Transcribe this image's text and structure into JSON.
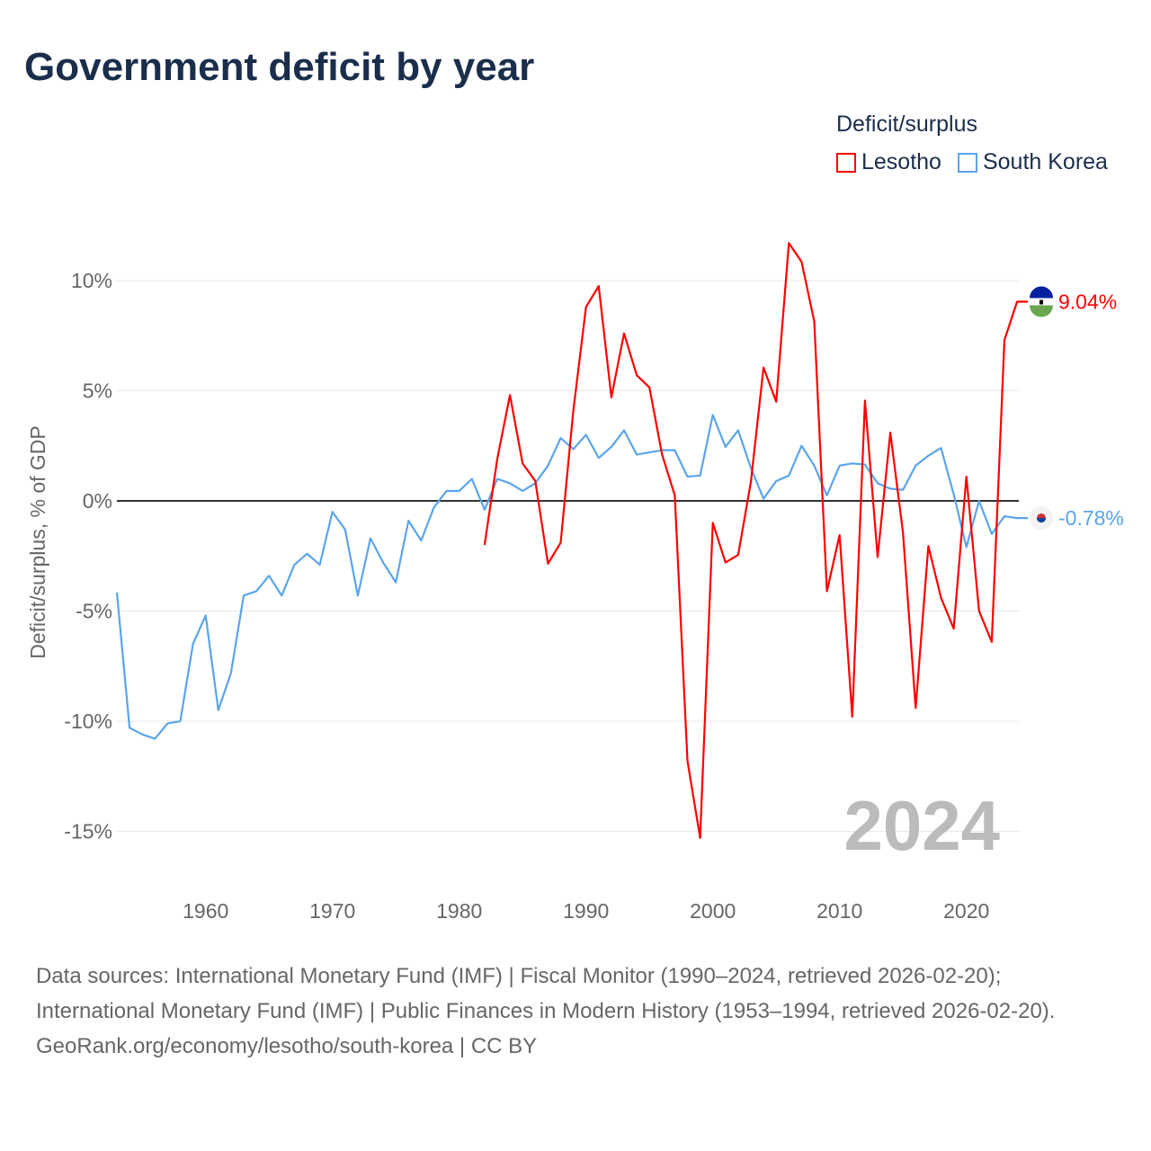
{
  "title": "Government deficit by year",
  "legend": {
    "title": "Deficit/surplus",
    "items": [
      {
        "label": "Lesotho",
        "color": "#ff0000"
      },
      {
        "label": "South Korea",
        "color": "#5aa5eb"
      }
    ]
  },
  "year_label": "2024",
  "footer": {
    "sources": "Data sources: International Monetary Fund (IMF) | Fiscal Monitor (1990–2024, retrieved 2026-02-20); International Monetary Fund (IMF) | Public Finances in Modern History (1953–1994, retrieved 2026-02-20).",
    "link": "GeoRank.org/economy/lesotho/south-korea | CC BY"
  },
  "chart_data": {
    "type": "line",
    "title": "Government deficit by year",
    "xlabel": "",
    "ylabel": "Deficit/surplus, % of GDP",
    "xlim": [
      1953,
      2024
    ],
    "ylim": [
      -17,
      12
    ],
    "x_ticks": [
      1960,
      1970,
      1980,
      1990,
      2000,
      2010,
      2020
    ],
    "y_ticks": [
      {
        "v": 10,
        "label": "10%"
      },
      {
        "v": 5,
        "label": "5%"
      },
      {
        "v": 0,
        "label": "0%"
      },
      {
        "v": -5,
        "label": "-5%"
      },
      {
        "v": -10,
        "label": "-10%"
      },
      {
        "v": -15,
        "label": "-15%"
      }
    ],
    "grid": true,
    "legend_position": "top-right",
    "series": [
      {
        "name": "Lesotho",
        "color": "#ff0000",
        "start": 1982,
        "end_label": "9.04%",
        "values": [
          -2.0,
          1.9,
          4.8,
          1.7,
          0.9,
          -2.85,
          -1.9,
          4.1,
          8.8,
          9.75,
          4.7,
          7.6,
          5.7,
          5.15,
          2.1,
          0.25,
          -11.8,
          -15.3,
          -1.0,
          -2.8,
          -2.45,
          0.85,
          6.05,
          4.5,
          11.7,
          10.85,
          8.15,
          -4.1,
          -1.55,
          -9.8,
          4.55,
          -2.55,
          3.1,
          -1.45,
          -9.4,
          -2.05,
          -4.4,
          -5.8,
          1.1,
          -5.0,
          -6.4,
          7.3,
          9.04
        ]
      },
      {
        "name": "South Korea",
        "color": "#5aa5eb",
        "start": 1953,
        "end_label": "-0.78%",
        "values": [
          -4.16,
          -10.3,
          -10.6,
          -10.8,
          -10.1,
          -10.0,
          -6.5,
          -5.2,
          -9.5,
          -7.8,
          -4.3,
          -4.1,
          -3.4,
          -4.3,
          -2.9,
          -2.4,
          -2.9,
          -0.5,
          -1.3,
          -4.3,
          -1.7,
          -2.8,
          -3.7,
          -0.9,
          -1.8,
          -0.3,
          0.45,
          0.45,
          1.0,
          -0.4,
          1.0,
          0.8,
          0.45,
          0.8,
          1.6,
          2.85,
          2.35,
          3.0,
          1.95,
          2.45,
          3.2,
          2.1,
          2.2,
          2.3,
          2.3,
          1.1,
          1.15,
          3.9,
          2.45,
          3.2,
          1.5,
          0.1,
          0.9,
          1.15,
          2.5,
          1.6,
          0.25,
          1.6,
          1.7,
          1.65,
          0.8,
          0.55,
          0.5,
          1.6,
          2.05,
          2.4,
          0.3,
          -2.1,
          0.0,
          -1.5,
          -0.7,
          -0.78
        ]
      }
    ]
  }
}
